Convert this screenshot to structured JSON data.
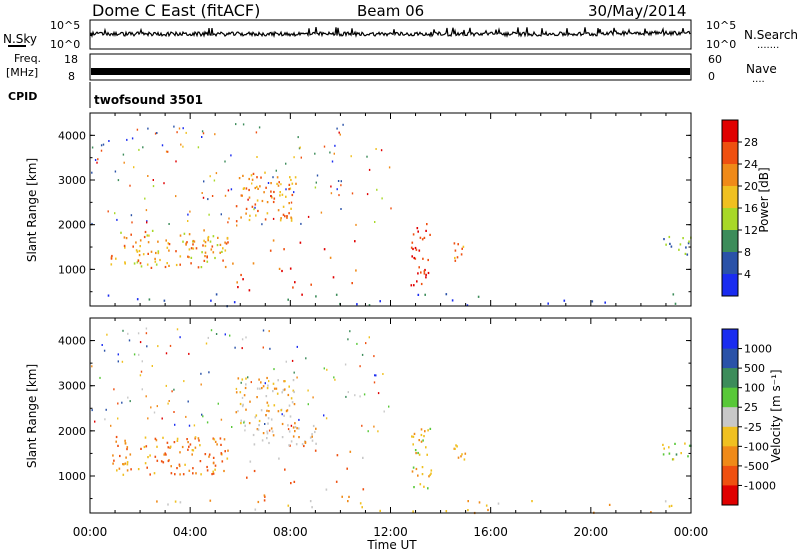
{
  "header": {
    "title": "Dome C East (fitACF)",
    "beam": "Beam 06",
    "date": "30/May/2014"
  },
  "top_panels": {
    "nsky_label": "N.Sky",
    "nsearch_label": "N.Search",
    "nsearch_dots": ".......",
    "noise_ticks": [
      "10^5",
      "10^0"
    ],
    "freq_label_1": "Freq.",
    "freq_label_2": "[MHz]",
    "freq_ticks": [
      "18",
      "8"
    ],
    "nave_label": "Nave",
    "nave_dots": "....",
    "nave_ticks": [
      "60",
      "0"
    ],
    "cpid_label": "CPID",
    "cpid_value": "twofsound 3501"
  },
  "chart_data": [
    {
      "type": "heatmap",
      "xlabel": "Time UT",
      "ylabel": "Slant Range [km]",
      "x_ticks": [
        "00:00",
        "04:00",
        "08:00",
        "12:00",
        "16:00",
        "20:00",
        "00:00"
      ],
      "xlim_hours": [
        0,
        24
      ],
      "y_ticks": [
        1000,
        2000,
        3000,
        4000
      ],
      "ylim": [
        180,
        4500
      ],
      "colorbar_label": "Power [dB]",
      "colorbar_ticks": [
        "4",
        "8",
        "12",
        "16",
        "20",
        "24",
        "28"
      ],
      "colorbar_colors": [
        "#1a2cf0",
        "#2a52a8",
        "#3c8c5a",
        "#a8d828",
        "#f0c020",
        "#f08a18",
        "#ef5010",
        "#e00000"
      ],
      "blobs": [
        {
          "t": [
            0.8,
            5.5
          ],
          "r": [
            1050,
            1900
          ],
          "c": [
            3,
            5,
            6,
            4
          ]
        },
        {
          "t": [
            5.5,
            11.0
          ],
          "r": [
            450,
            1700
          ],
          "c": [
            7,
            6,
            7,
            5
          ]
        },
        {
          "t": [
            5.8,
            8.2
          ],
          "r": [
            2100,
            3200
          ],
          "c": [
            5,
            6,
            4
          ]
        },
        {
          "t": [
            12.8,
            13.6
          ],
          "r": [
            650,
            2100
          ],
          "c": [
            7,
            6
          ]
        },
        {
          "t": [
            14.5,
            15.0
          ],
          "r": [
            1100,
            1750
          ],
          "c": [
            6,
            4
          ]
        },
        {
          "t": [
            22.8,
            24.0
          ],
          "r": [
            1350,
            1750
          ],
          "c": [
            1,
            3
          ]
        },
        {
          "t": [
            0.0,
            24.0
          ],
          "r": [
            200,
            480
          ],
          "c": [
            1,
            2,
            0
          ]
        }
      ]
    },
    {
      "type": "heatmap",
      "xlabel": "Time UT",
      "ylabel": "Slant Range [km]",
      "x_ticks": [
        "00:00",
        "04:00",
        "08:00",
        "12:00",
        "16:00",
        "20:00",
        "00:00"
      ],
      "xlim_hours": [
        0,
        24
      ],
      "y_ticks": [
        1000,
        2000,
        3000,
        4000
      ],
      "ylim": [
        180,
        4500
      ],
      "colorbar_label": "Velocity [m s⁻¹]",
      "colorbar_ticks": [
        "1000",
        "500",
        "100",
        "25",
        "-25",
        "-100",
        "-500",
        "-1000"
      ],
      "colorbar_colors": [
        "#1a2cf0",
        "#2a52a8",
        "#3c8c5a",
        "#58c838",
        "#c8c8c8",
        "#f0c020",
        "#f08a18",
        "#ef5010",
        "#e00000"
      ],
      "blobs": [
        {
          "t": [
            0.8,
            5.5
          ],
          "r": [
            1050,
            1900
          ],
          "c": [
            7,
            6,
            7,
            5
          ]
        },
        {
          "t": [
            5.5,
            11.0
          ],
          "r": [
            450,
            1700
          ],
          "c": [
            7,
            6,
            7,
            4
          ]
        },
        {
          "t": [
            6.5,
            9.0
          ],
          "r": [
            1700,
            2200
          ],
          "c": [
            4,
            4,
            6
          ]
        },
        {
          "t": [
            5.8,
            8.2
          ],
          "r": [
            2100,
            3200
          ],
          "c": [
            6,
            5,
            4
          ]
        },
        {
          "t": [
            12.8,
            13.6
          ],
          "r": [
            650,
            2100
          ],
          "c": [
            6,
            3,
            5
          ]
        },
        {
          "t": [
            14.5,
            15.0
          ],
          "r": [
            1100,
            1750
          ],
          "c": [
            6,
            5
          ]
        },
        {
          "t": [
            22.8,
            24.0
          ],
          "r": [
            1350,
            1750
          ],
          "c": [
            2,
            3,
            5
          ]
        },
        {
          "t": [
            0.0,
            24.0
          ],
          "r": [
            200,
            480
          ],
          "c": [
            5,
            4,
            6
          ]
        }
      ]
    }
  ]
}
